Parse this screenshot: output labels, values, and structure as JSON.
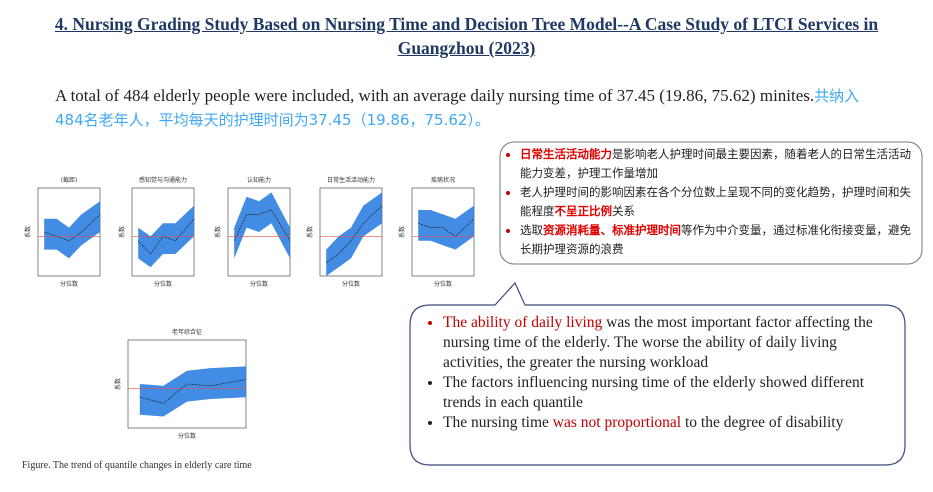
{
  "header": {
    "title": "4. Nursing Grading Study Based on Nursing Time and Decision Tree Model--A Case Study of LTCI Services in Guangzhou (2023)"
  },
  "summary": {
    "english": "A total of 484 elderly people were included, with an average daily nursing time of 37.45 (19.86, 75.62) minites.",
    "chinese": "共纳入484名老年人，平均每天的护理时间为37.45（19.86，75.62）。"
  },
  "chinese_box": {
    "bullets": [
      [
        {
          "text": "日常生活活动能力",
          "red": true
        },
        {
          "text": "是影响老人护理时间最主要因素，随着老人的日常生活活动能力变差，护理工作量增加",
          "red": false
        }
      ],
      [
        {
          "text": "老人护理时间的影响因素在各个分位数上呈现不同的变化趋势，护理时间和失能程度",
          "red": false
        },
        {
          "text": "不呈正比例",
          "red": true
        },
        {
          "text": "关系",
          "red": false
        }
      ],
      [
        {
          "text": "选取",
          "red": false
        },
        {
          "text": "资源消耗量、标准护理时间",
          "red": true
        },
        {
          "text": "等作为中介变量，通过标准化衔接变量，避免长期护理资源的浪费",
          "red": false
        }
      ]
    ]
  },
  "english_box": {
    "bullets": [
      [
        {
          "text": "The ability of daily living",
          "red": true
        },
        {
          "text": " was the most important factor affecting the nursing time of the elderly.  The worse the ability of daily living activities, the greater the nursing workload",
          "red": false
        }
      ],
      [
        {
          "text": "The factors influencing nursing time of the elderly showed different trends in each quantile",
          "red": false
        }
      ],
      [
        {
          "text": "The nursing time ",
          "red": false
        },
        {
          "text": "was not proportional",
          "red": true
        },
        {
          "text": " to the degree of disability",
          "red": false
        }
      ]
    ]
  },
  "figure": {
    "panels": [
      "(截距)",
      "感知觉与沟通能力",
      "认知能力",
      "日常生活活动能力",
      "疾病状况",
      "老年综合征"
    ],
    "x_label": "分位数",
    "y_label": "系数",
    "caption": "Figure. The trend of quantile changes in elderly care time"
  }
}
